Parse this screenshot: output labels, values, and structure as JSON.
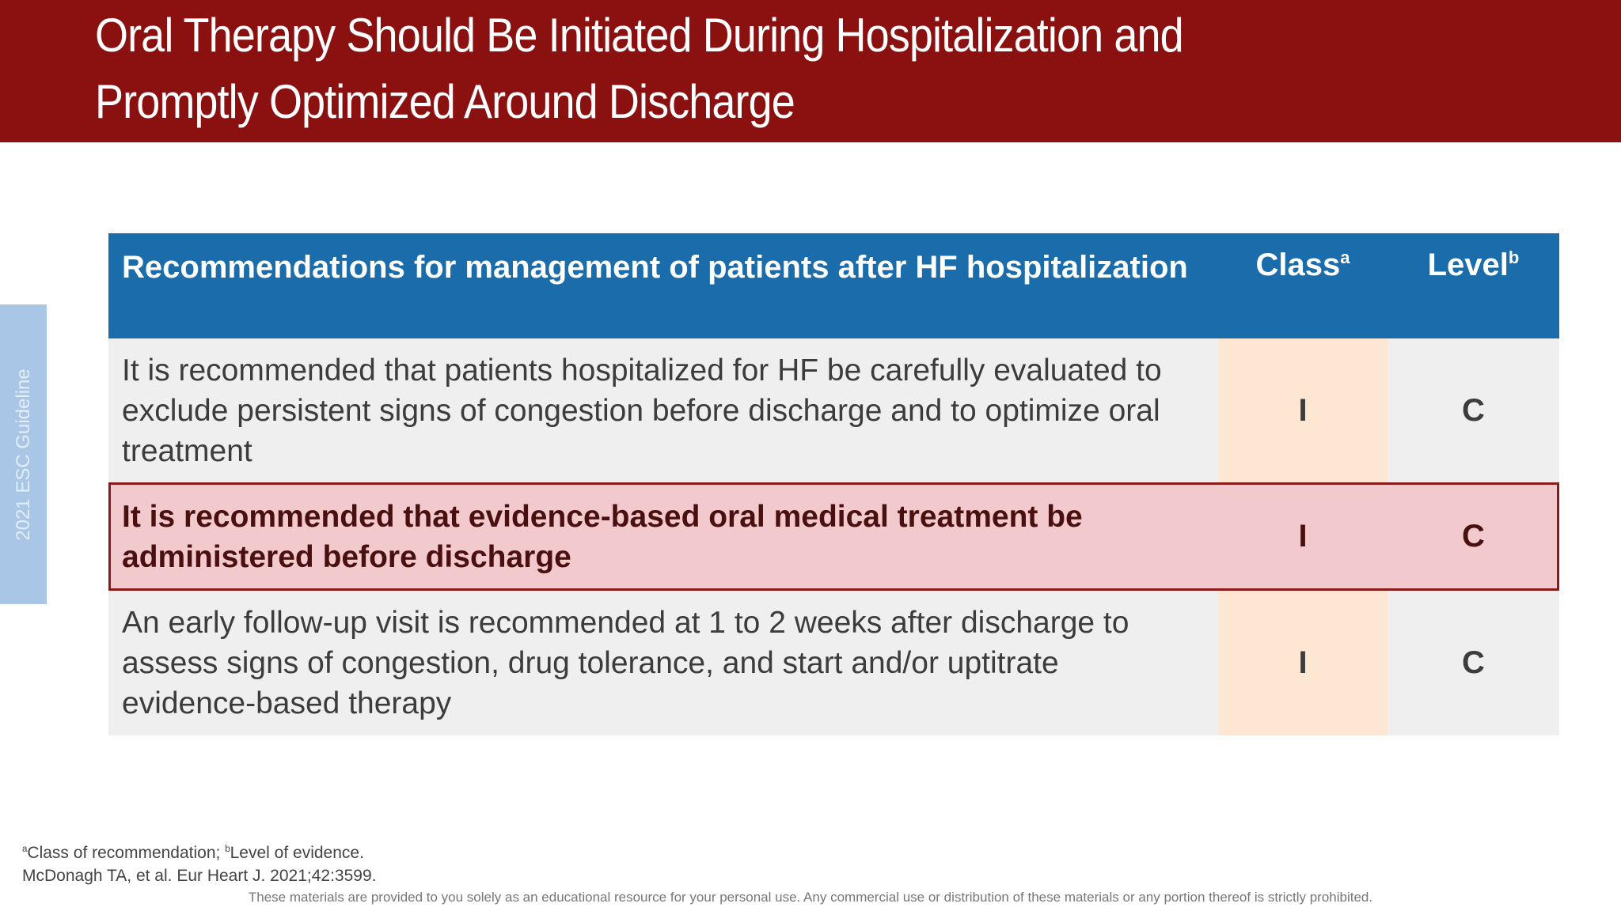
{
  "header": {
    "title_lines": [
      "Oral Therapy Should Be Initiated During Hospitalization and",
      "Promptly Optimized Around Discharge"
    ]
  },
  "side_tab": "2021 ESC Guideline",
  "table": {
    "header": {
      "recommendation": "Recommendations for management of patients after HF hospitalization",
      "class": {
        "text": "Class",
        "sup": "a"
      },
      "level": {
        "text": "Level",
        "sup": "b"
      }
    },
    "rows": [
      {
        "text": "It is recommended that patients hospitalized for HF be carefully evaluated to exclude persistent signs of congestion before discharge and to optimize oral treatment",
        "class": "I",
        "level": "C"
      },
      {
        "text": "It is recommended that evidence-based oral medical treatment be administered before discharge",
        "class": "I",
        "level": "C"
      },
      {
        "text": "An early follow-up visit is recommended at 1 to 2 weeks after discharge to assess signs of congestion, drug tolerance, and start and/or uptitrate evidence-based therapy",
        "class": "I",
        "level": "C"
      }
    ]
  },
  "footnotes": {
    "definitions": [
      {
        "sup": "a",
        "text": "Class of recommendation; "
      },
      {
        "sup": "b",
        "text": "Level of evidence."
      }
    ],
    "citation": "McDonagh TA, et al. Eur Heart J. 2021;42:3599.",
    "disclaimer": "These materials are provided to you solely as an educational resource for your personal use. Any commercial use or distribution of these materials or any portion thereof is strictly prohibited."
  }
}
